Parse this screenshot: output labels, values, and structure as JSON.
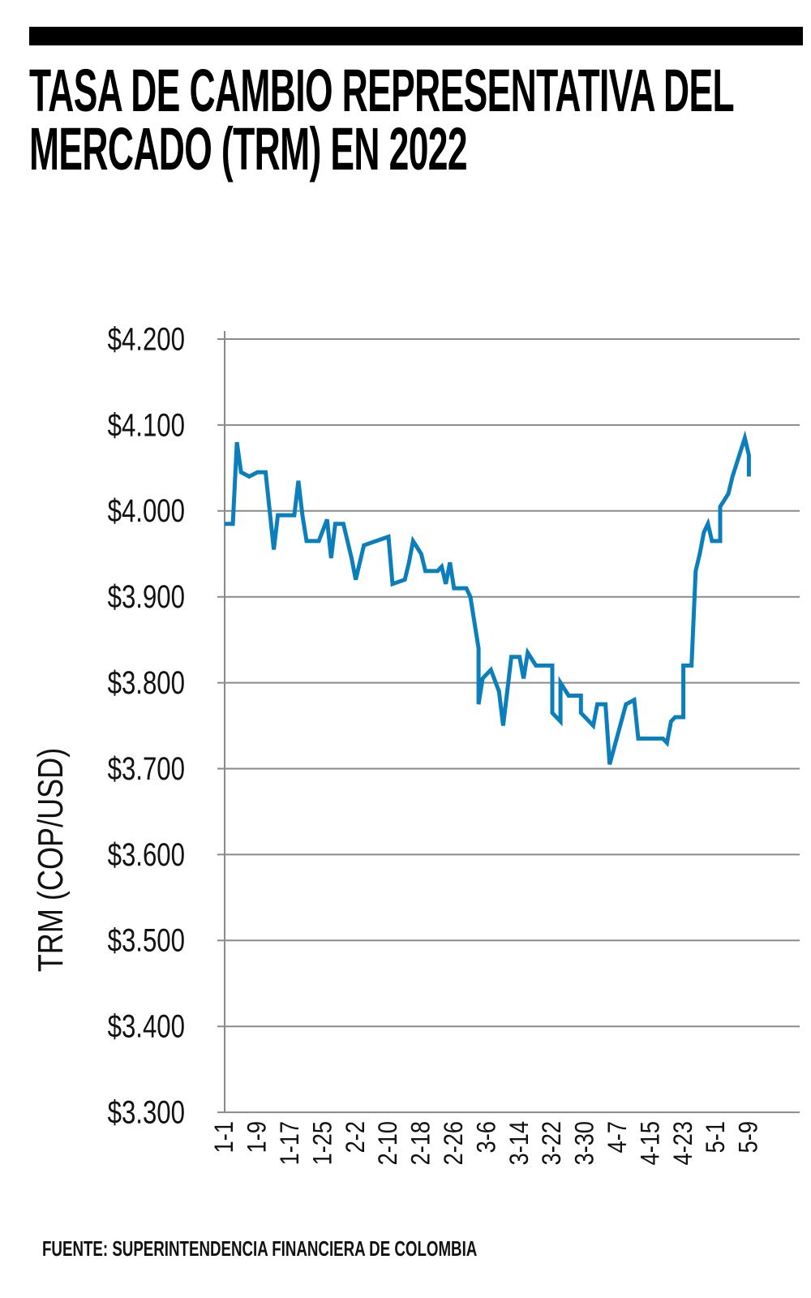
{
  "title": "TASA DE CAMBIO REPRESENTATIVA DEL MERCADO (TRM) EN 2022",
  "title_lines": [
    "TASA DE CAMBIO REPRESENTATIVA DEL",
    "MERCADO (TRM) EN 2022"
  ],
  "source": "FUENTE: SUPERINTENDENCIA FINANCIERA DE COLOMBIA",
  "chart_data": {
    "type": "line",
    "title": "TASA DE CAMBIO REPRESENTATIVA DEL MERCADO (TRM) EN 2022",
    "xlabel": "",
    "ylabel": "TRM (COP/USD)",
    "ylim": [
      3300,
      4200
    ],
    "yticks": [
      4200,
      4100,
      4000,
      3900,
      3800,
      3700,
      3600,
      3500,
      3400,
      3300
    ],
    "ytick_labels": [
      "$4.200",
      "$4.100",
      "$4.000",
      "$3.900",
      "$3.800",
      "$3.700",
      "$3.600",
      "$3.500",
      "$3.400",
      "$3.300"
    ],
    "xtick_labels": [
      "1-1",
      "1-9",
      "1-17",
      "1-25",
      "2-2",
      "2-10",
      "2-18",
      "2-26",
      "3-6",
      "3-14",
      "3-22",
      "3-30",
      "4-7",
      "4-15",
      "4-23",
      "5-1",
      "5-9"
    ],
    "grid": true,
    "line_color": "#0b7fbb",
    "series": [
      {
        "x": [
          "1-1",
          "1-3",
          "1-4",
          "1-5",
          "1-7",
          "1-9",
          "1-11",
          "1-13",
          "1-14",
          "1-18",
          "1-19",
          "1-20",
          "1-21",
          "1-24",
          "1-26",
          "1-27",
          "1-28",
          "1-30",
          "2-1",
          "2-2",
          "2-4",
          "2-10",
          "2-11",
          "2-14",
          "2-15",
          "2-16",
          "2-18",
          "2-19",
          "2-22",
          "2-23",
          "2-24",
          "2-25",
          "2-26",
          "3-1",
          "3-2",
          "3-4",
          "3-4",
          "3-5",
          "3-7",
          "3-9",
          "3-10",
          "3-12",
          "3-14",
          "3-15",
          "3-16",
          "3-18",
          "3-22",
          "3-22",
          "3-24",
          "3-24",
          "3-26",
          "3-29",
          "3-29",
          "4-1",
          "4-2",
          "4-4",
          "4-5",
          "4-9",
          "4-11",
          "4-12",
          "4-18",
          "4-19",
          "4-20",
          "4-21",
          "4-23",
          "4-23",
          "4-25",
          "4-26",
          "4-27",
          "4-28",
          "4-29",
          "4-30",
          "5-2",
          "5-2",
          "5-4",
          "5-5",
          "5-8",
          "5-9",
          "5-9"
        ],
        "values": [
          3985,
          3985,
          4080,
          4045,
          4040,
          4045,
          4045,
          3955,
          3995,
          3995,
          4035,
          3995,
          3965,
          3965,
          3990,
          3945,
          3985,
          3985,
          3945,
          3920,
          3960,
          3970,
          3915,
          3920,
          3940,
          3965,
          3950,
          3930,
          3930,
          3935,
          3915,
          3940,
          3910,
          3910,
          3900,
          3840,
          3775,
          3805,
          3815,
          3790,
          3750,
          3830,
          3830,
          3805,
          3835,
          3820,
          3820,
          3765,
          3755,
          3800,
          3785,
          3785,
          3765,
          3750,
          3775,
          3775,
          3705,
          3775,
          3780,
          3735,
          3735,
          3730,
          3755,
          3760,
          3760,
          3820,
          3820,
          3930,
          3950,
          3975,
          3985,
          3965,
          3965,
          4005,
          4020,
          4040,
          4085,
          4065,
          4040
        ]
      }
    ]
  }
}
